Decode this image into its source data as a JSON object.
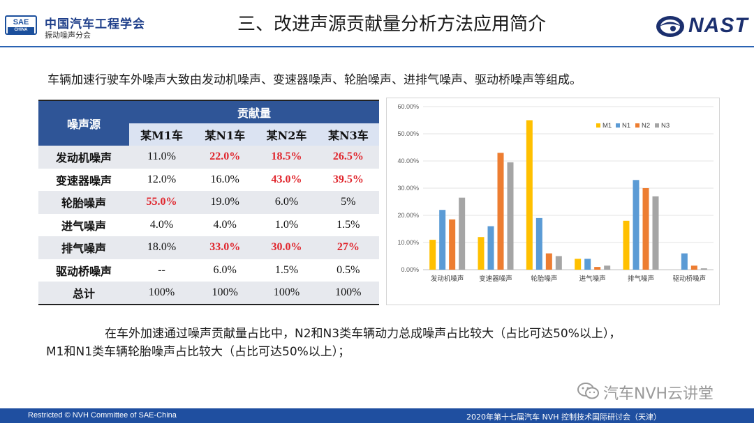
{
  "header": {
    "sae_logo_top": "SAE",
    "sae_logo_bottom": "CHINA",
    "org_name": "中国汽车工程学会",
    "org_sub": "振动噪声分会",
    "title": "三、改进声源贡献量分析方法应用简介",
    "nast_logo": "NAST",
    "colors": {
      "accent": "#2a63b3",
      "navy": "#1f3f8a"
    }
  },
  "intro": "车辆加速行驶车外噪声大致由发动机噪声、变速器噪声、轮胎噪声、进排气噪声、驱动桥噪声等组成。",
  "table": {
    "col_source": "噪声源",
    "col_group": "贡献量",
    "vehicles": [
      "某M1车",
      "某N1车",
      "某N2车",
      "某N3车"
    ],
    "rows": [
      {
        "name": "发动机噪声",
        "values": [
          "11.0%",
          "22.0%",
          "18.5%",
          "26.5%"
        ],
        "red": [
          false,
          true,
          true,
          true
        ]
      },
      {
        "name": "变速器噪声",
        "values": [
          "12.0%",
          "16.0%",
          "43.0%",
          "39.5%"
        ],
        "red": [
          false,
          false,
          true,
          true
        ]
      },
      {
        "name": "轮胎噪声",
        "values": [
          "55.0%",
          "19.0%",
          "6.0%",
          "5%"
        ],
        "red": [
          true,
          false,
          false,
          false
        ]
      },
      {
        "name": "进气噪声",
        "values": [
          "4.0%",
          "4.0%",
          "1.0%",
          "1.5%"
        ],
        "red": [
          false,
          false,
          false,
          false
        ]
      },
      {
        "name": "排气噪声",
        "values": [
          "18.0%",
          "33.0%",
          "30.0%",
          "27%"
        ],
        "red": [
          false,
          true,
          true,
          true
        ]
      },
      {
        "name": "驱动桥噪声",
        "values": [
          "--",
          "6.0%",
          "1.5%",
          "0.5%"
        ],
        "red": [
          false,
          false,
          false,
          false
        ]
      },
      {
        "name": "总计",
        "values": [
          "100%",
          "100%",
          "100%",
          "100%"
        ],
        "red": [
          false,
          false,
          false,
          false
        ]
      }
    ],
    "colors": {
      "header": "#2f5597",
      "highlight": "#e0262d"
    }
  },
  "chart_data": {
    "type": "bar",
    "title": "",
    "xlabel": "",
    "ylabel": "",
    "categories": [
      "发动机噪声",
      "变速器噪声",
      "轮胎噪声",
      "进气噪声",
      "排气噪声",
      "驱动桥噪声"
    ],
    "series": [
      {
        "name": "M1",
        "color": "#ffc000",
        "values": [
          11.0,
          12.0,
          55.0,
          4.0,
          18.0,
          0
        ]
      },
      {
        "name": "N1",
        "color": "#5b9bd5",
        "values": [
          22.0,
          16.0,
          19.0,
          4.0,
          33.0,
          6.0
        ]
      },
      {
        "name": "N2",
        "color": "#ed7d31",
        "values": [
          18.5,
          43.0,
          6.0,
          1.0,
          30.0,
          1.5
        ]
      },
      {
        "name": "N3",
        "color": "#a5a5a5",
        "values": [
          26.5,
          39.5,
          5.0,
          1.5,
          27.0,
          0.5
        ]
      }
    ],
    "yticks": [
      "0.00%",
      "10.00%",
      "20.00%",
      "30.00%",
      "40.00%",
      "50.00%",
      "60.00%"
    ],
    "ylim": [
      0,
      60
    ],
    "grid": true,
    "legend": "top-right"
  },
  "conclusion": {
    "line1": "在车外加速通过噪声贡献量占比中，N2和N3类车辆动力总成噪声占比较大（占比可达50%以上），",
    "line2": "M1和N1类车辆轮胎噪声占比较大（占比可达50%以上）；"
  },
  "watermark": "汽车NVH云讲堂",
  "footer": {
    "left": "Restricted © NVH Committee of SAE-China",
    "right": "2020年第十七届汽车 NVH 控制技术国际研讨会（天津）"
  }
}
